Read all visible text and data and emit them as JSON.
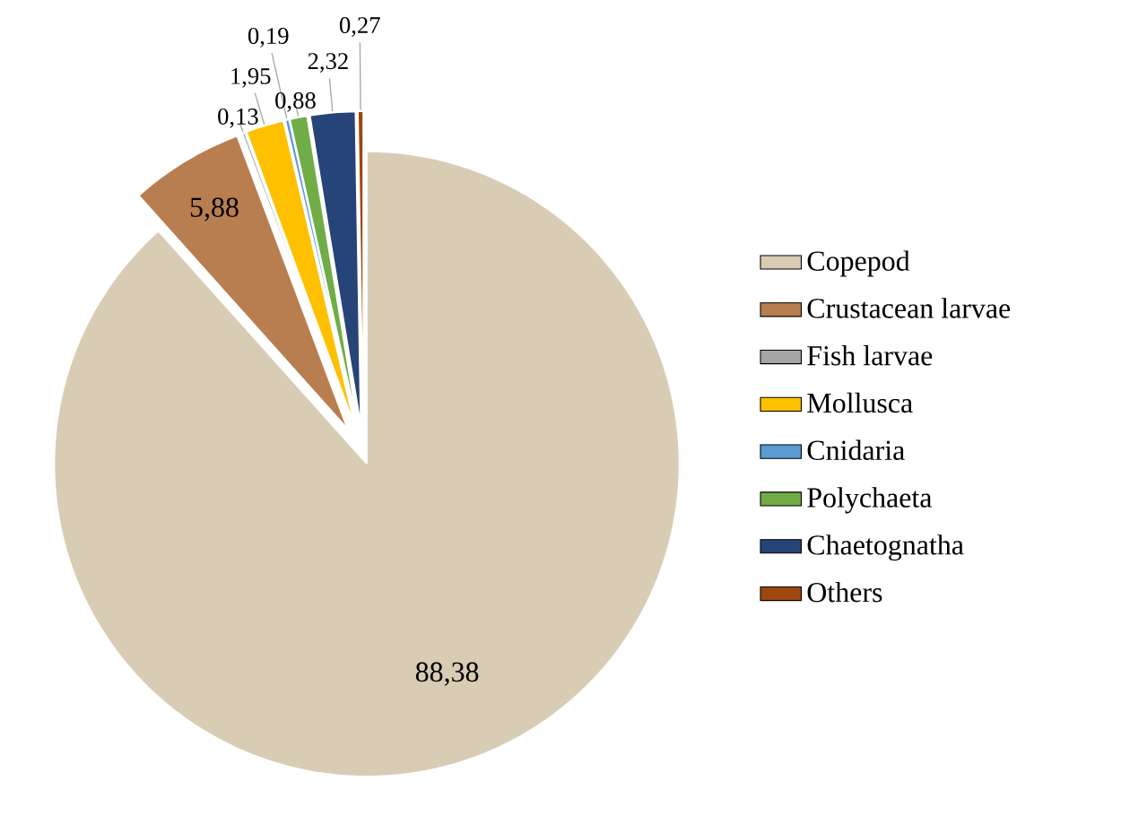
{
  "chart_data": {
    "type": "pie",
    "categories": [
      "Copepod",
      "Crustacean larvae",
      "Fish larvae",
      "Mollusca",
      "Cnidaria",
      "Polychaeta",
      "Chaetognatha",
      "Others"
    ],
    "values": [
      88.38,
      5.88,
      0.13,
      1.95,
      0.19,
      0.88,
      2.32,
      0.27
    ],
    "value_labels": [
      "88,38",
      "5,88",
      "0,13",
      "1,95",
      "0,19",
      "0,88",
      "2,32",
      "0,27"
    ],
    "colors": [
      "#d8cdb4",
      "#b97e50",
      "#a5a5a5",
      "#ffc000",
      "#5b9bd5",
      "#70ad47",
      "#264478",
      "#9e480e"
    ],
    "legend": "right"
  }
}
